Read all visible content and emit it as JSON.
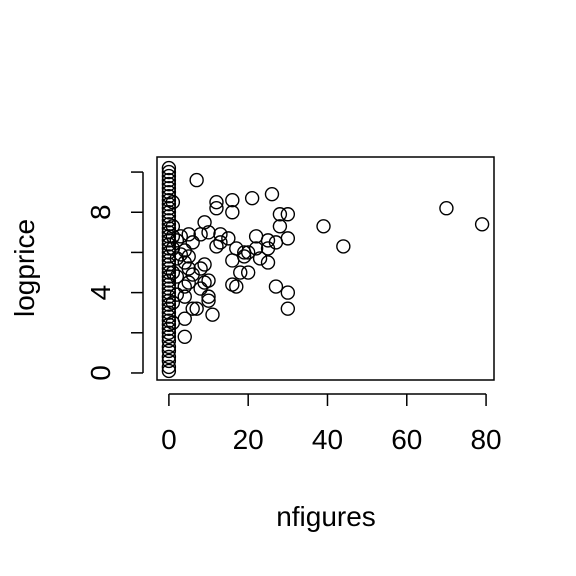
{
  "chart_data": {
    "type": "scatter",
    "title": "",
    "xlabel": "nfigures",
    "ylabel": "logprice",
    "xlim": [
      -3,
      82
    ],
    "ylim": [
      -0.35,
      10.75
    ],
    "x_ticks": [
      0,
      20,
      40,
      60,
      80
    ],
    "x_tick_labels": [
      "0",
      "20",
      "40",
      "60",
      "80"
    ],
    "y_ticks": [
      0,
      2,
      4,
      6,
      8,
      10
    ],
    "y_tick_labels": [
      "0",
      "",
      "4",
      "",
      "8",
      ""
    ],
    "grid": false,
    "marker": "open-circle",
    "points": [
      {
        "x": 0,
        "y": 0.1
      },
      {
        "x": 0,
        "y": 0.3
      },
      {
        "x": 0,
        "y": 0.6
      },
      {
        "x": 0,
        "y": 0.8
      },
      {
        "x": 0,
        "y": 1.1
      },
      {
        "x": 0,
        "y": 1.3
      },
      {
        "x": 0,
        "y": 1.6
      },
      {
        "x": 0,
        "y": 1.8
      },
      {
        "x": 0,
        "y": 2.0
      },
      {
        "x": 0,
        "y": 2.2
      },
      {
        "x": 0,
        "y": 2.4
      },
      {
        "x": 0,
        "y": 2.6
      },
      {
        "x": 0,
        "y": 2.8
      },
      {
        "x": 0,
        "y": 3.0
      },
      {
        "x": 0,
        "y": 3.2
      },
      {
        "x": 0,
        "y": 3.4
      },
      {
        "x": 0,
        "y": 3.6
      },
      {
        "x": 0,
        "y": 3.8
      },
      {
        "x": 0,
        "y": 4.0
      },
      {
        "x": 0,
        "y": 4.2
      },
      {
        "x": 0,
        "y": 4.4
      },
      {
        "x": 0,
        "y": 4.6
      },
      {
        "x": 0,
        "y": 4.8
      },
      {
        "x": 0,
        "y": 5.0
      },
      {
        "x": 0,
        "y": 5.2
      },
      {
        "x": 0,
        "y": 5.4
      },
      {
        "x": 0,
        "y": 5.6
      },
      {
        "x": 0,
        "y": 5.8
      },
      {
        "x": 0,
        "y": 6.0
      },
      {
        "x": 0,
        "y": 6.2
      },
      {
        "x": 0,
        "y": 6.4
      },
      {
        "x": 0,
        "y": 6.6
      },
      {
        "x": 0,
        "y": 6.8
      },
      {
        "x": 0,
        "y": 7.0
      },
      {
        "x": 0,
        "y": 7.2
      },
      {
        "x": 0,
        "y": 7.4
      },
      {
        "x": 0,
        "y": 7.6
      },
      {
        "x": 0,
        "y": 7.8
      },
      {
        "x": 0,
        "y": 8.0
      },
      {
        "x": 0,
        "y": 8.2
      },
      {
        "x": 0,
        "y": 8.4
      },
      {
        "x": 0,
        "y": 8.6
      },
      {
        "x": 0,
        "y": 8.8
      },
      {
        "x": 0,
        "y": 9.0
      },
      {
        "x": 0,
        "y": 9.2
      },
      {
        "x": 0,
        "y": 9.4
      },
      {
        "x": 0,
        "y": 9.6
      },
      {
        "x": 0,
        "y": 9.8
      },
      {
        "x": 0,
        "y": 10.0
      },
      {
        "x": 0,
        "y": 10.2
      },
      {
        "x": 1,
        "y": 3.5
      },
      {
        "x": 1,
        "y": 5.0
      },
      {
        "x": 1,
        "y": 6.2
      },
      {
        "x": 1,
        "y": 7.3
      },
      {
        "x": 1,
        "y": 8.5
      },
      {
        "x": 1,
        "y": 2.5
      },
      {
        "x": 1,
        "y": 6.8
      },
      {
        "x": 2,
        "y": 4.8
      },
      {
        "x": 2,
        "y": 5.7
      },
      {
        "x": 2,
        "y": 6.6
      },
      {
        "x": 2,
        "y": 3.9
      },
      {
        "x": 3,
        "y": 5.9
      },
      {
        "x": 3,
        "y": 6.8
      },
      {
        "x": 4,
        "y": 1.8
      },
      {
        "x": 4,
        "y": 2.7
      },
      {
        "x": 4,
        "y": 3.8
      },
      {
        "x": 4,
        "y": 4.3
      },
      {
        "x": 4,
        "y": 5.5
      },
      {
        "x": 4,
        "y": 6.1
      },
      {
        "x": 5,
        "y": 4.5
      },
      {
        "x": 5,
        "y": 5.2
      },
      {
        "x": 5,
        "y": 5.8
      },
      {
        "x": 5,
        "y": 6.9
      },
      {
        "x": 6,
        "y": 3.2
      },
      {
        "x": 6,
        "y": 4.9
      },
      {
        "x": 6,
        "y": 6.5
      },
      {
        "x": 7,
        "y": 9.6
      },
      {
        "x": 7,
        "y": 3.2
      },
      {
        "x": 8,
        "y": 4.2
      },
      {
        "x": 8,
        "y": 5.2
      },
      {
        "x": 8,
        "y": 6.9
      },
      {
        "x": 9,
        "y": 4.5
      },
      {
        "x": 9,
        "y": 5.4
      },
      {
        "x": 9,
        "y": 7.5
      },
      {
        "x": 10,
        "y": 3.6
      },
      {
        "x": 10,
        "y": 3.8
      },
      {
        "x": 10,
        "y": 4.6
      },
      {
        "x": 10,
        "y": 7.0
      },
      {
        "x": 11,
        "y": 2.9
      },
      {
        "x": 12,
        "y": 6.3
      },
      {
        "x": 12,
        "y": 8.2
      },
      {
        "x": 12,
        "y": 8.5
      },
      {
        "x": 13,
        "y": 6.5
      },
      {
        "x": 13,
        "y": 6.9
      },
      {
        "x": 15,
        "y": 6.7
      },
      {
        "x": 16,
        "y": 4.4
      },
      {
        "x": 16,
        "y": 5.6
      },
      {
        "x": 16,
        "y": 8.0
      },
      {
        "x": 16,
        "y": 8.6
      },
      {
        "x": 17,
        "y": 4.3
      },
      {
        "x": 17,
        "y": 6.2
      },
      {
        "x": 18,
        "y": 5.0
      },
      {
        "x": 19,
        "y": 5.8
      },
      {
        "x": 19,
        "y": 6.0
      },
      {
        "x": 20,
        "y": 5.0
      },
      {
        "x": 20,
        "y": 6.0
      },
      {
        "x": 21,
        "y": 8.7
      },
      {
        "x": 22,
        "y": 6.8
      },
      {
        "x": 22,
        "y": 6.2
      },
      {
        "x": 23,
        "y": 5.7
      },
      {
        "x": 25,
        "y": 5.5
      },
      {
        "x": 25,
        "y": 6.2
      },
      {
        "x": 25,
        "y": 6.6
      },
      {
        "x": 26,
        "y": 8.9
      },
      {
        "x": 27,
        "y": 4.3
      },
      {
        "x": 27,
        "y": 6.5
      },
      {
        "x": 28,
        "y": 7.3
      },
      {
        "x": 28,
        "y": 7.9
      },
      {
        "x": 30,
        "y": 3.2
      },
      {
        "x": 30,
        "y": 4.0
      },
      {
        "x": 30,
        "y": 6.7
      },
      {
        "x": 30,
        "y": 7.9
      },
      {
        "x": 39,
        "y": 7.3
      },
      {
        "x": 44,
        "y": 6.3
      },
      {
        "x": 70,
        "y": 8.2
      },
      {
        "x": 79,
        "y": 7.4
      }
    ]
  }
}
